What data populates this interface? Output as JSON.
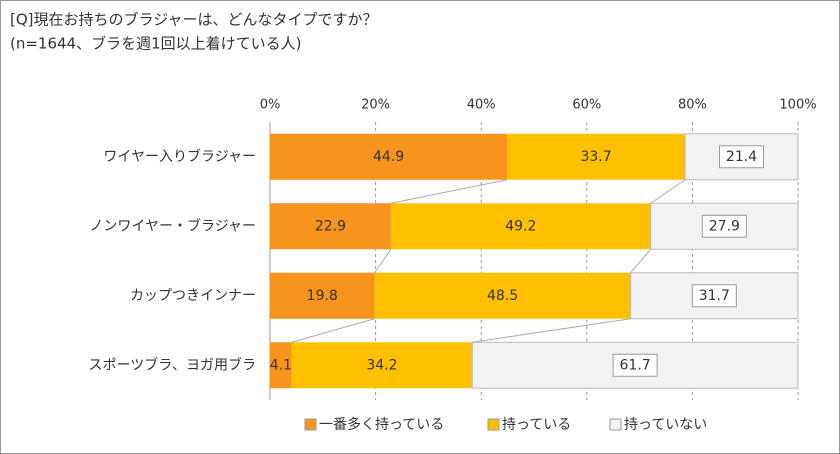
{
  "chart_data": {
    "type": "stacked-bar-horizontal",
    "title": "[Q]現在お持ちのブラジャーは、どんなタイプですか？",
    "subtitle": "(n=1644、ブラを週1回以上着けている人)",
    "categories": [
      "ワイヤー入りブラジャー",
      "ノンワイヤー・ブラジャー",
      "カップつきインナー",
      "スポーツブラ、ヨガ用ブラ"
    ],
    "series": [
      {
        "name": "一番多く持っている",
        "color": "#f7941d",
        "values": [
          44.9,
          22.9,
          19.8,
          4.1
        ]
      },
      {
        "name": "持っている",
        "color": "#ffc000",
        "values": [
          33.7,
          49.2,
          48.5,
          34.2
        ]
      },
      {
        "name": "持っていない",
        "color": "#f2f2f2",
        "values": [
          21.4,
          27.9,
          31.7,
          61.7
        ]
      }
    ],
    "xlim": [
      0,
      100
    ],
    "xticks": [
      {
        "value": 0,
        "label": "0%"
      },
      {
        "value": 20,
        "label": "20%"
      },
      {
        "value": 40,
        "label": "40%"
      },
      {
        "value": 60,
        "label": "60%"
      },
      {
        "value": 80,
        "label": "80%"
      },
      {
        "value": 100,
        "label": "100%"
      }
    ],
    "grid": true,
    "legend": "bottom"
  }
}
